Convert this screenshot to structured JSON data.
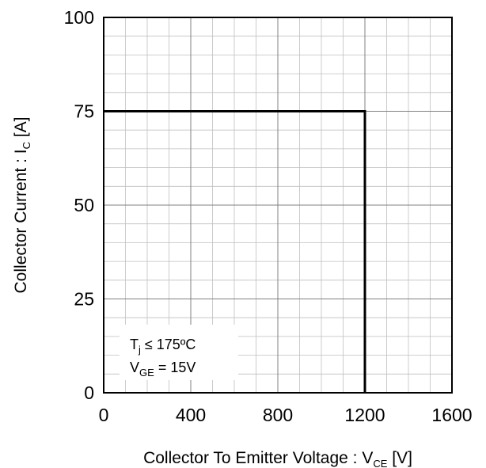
{
  "chart_data": {
    "type": "line",
    "xlabel": "Collector To Emitter Voltage : V",
    "xlabel_sub": "CE",
    "xlabel_unit": " [V]",
    "ylabel": "Collector Current : I",
    "ylabel_sub": "C",
    "ylabel_unit": " [A]",
    "xlim": [
      0,
      1600
    ],
    "ylim": [
      0,
      100
    ],
    "xticks": [
      0,
      400,
      800,
      1200,
      1600
    ],
    "xtick_labels": [
      "0",
      "400",
      "800",
      "1200",
      "1600"
    ],
    "yticks": [
      0,
      25,
      50,
      75,
      100
    ],
    "ytick_labels": [
      "0",
      "25",
      "50",
      "75",
      "100"
    ],
    "minor_x_step": 100,
    "minor_y_step": 5,
    "grid": true,
    "series": [
      {
        "x": [
          0,
          1200,
          1200
        ],
        "y": [
          75,
          75,
          0
        ]
      }
    ],
    "annotation": {
      "line1": {
        "main": "T",
        "sub": "j",
        "rest": " ≤ 175ºC"
      },
      "line2": {
        "main": "V",
        "sub": "GE",
        "rest": " = 15V"
      },
      "position": "bottom-left"
    },
    "colors": {
      "line": "#000000",
      "grid_major": "#808080",
      "grid_minor": "#bfbfbf",
      "axis": "#000000"
    }
  }
}
